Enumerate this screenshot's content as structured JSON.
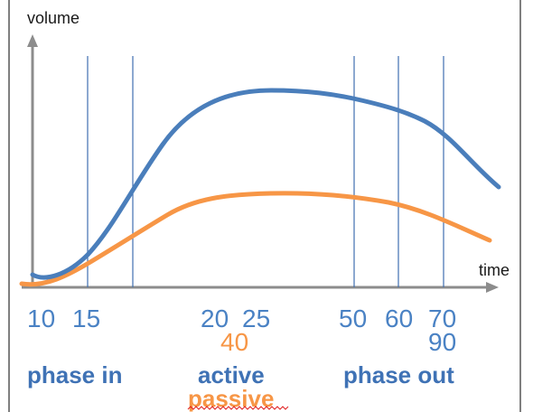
{
  "diagram": {
    "y_axis_label": "volume",
    "x_axis_label": "time",
    "blue_ticks": {
      "t10": "10",
      "t15": "15",
      "t20": "20",
      "t25": "25",
      "t50": "50",
      "t60": "60",
      "t70": "70",
      "t90": "90"
    },
    "orange_ticks": {
      "t40": "40"
    },
    "phases": {
      "phase_in": "phase in",
      "active": "active",
      "passive": "passive",
      "phase_out": "phase out"
    },
    "colors": {
      "blue_curve": "#4a7ebb",
      "orange_curve": "#f79646",
      "guides": "#3f6fb0",
      "axes": "#8c8c8c",
      "frame": "#7f7f7f",
      "spell_underline": "#e02020"
    }
  }
}
